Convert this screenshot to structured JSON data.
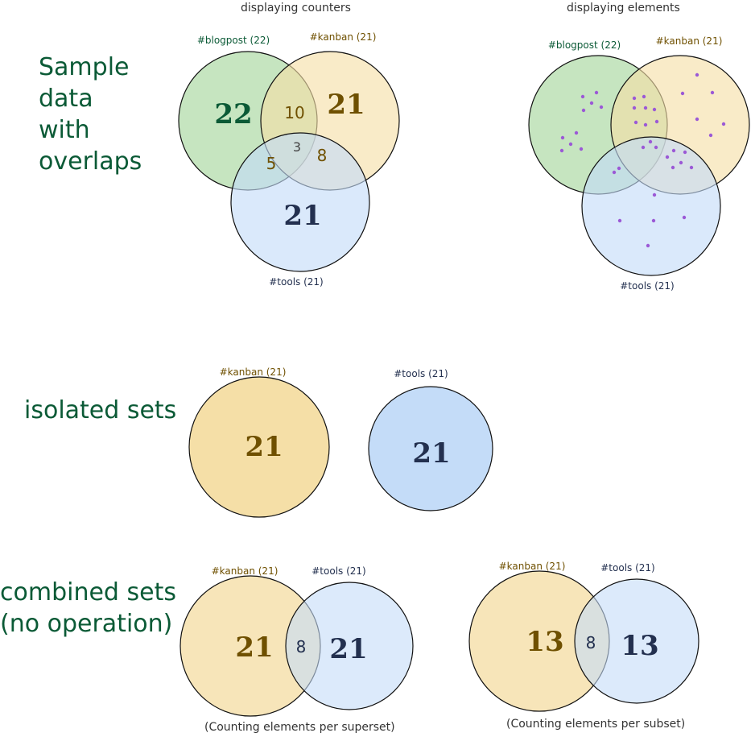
{
  "headers": {
    "counters": "displaying counters",
    "elements": "displaying elements"
  },
  "sections": {
    "overlaps": [
      "Sample",
      "data",
      "with",
      "overlaps"
    ],
    "isolated": "isolated sets",
    "combined": [
      "combined sets",
      "(no operation)"
    ]
  },
  "sets": {
    "blogpost": "#blogpost (22)",
    "kanban": "#kanban (21)",
    "tools": "#tools (21)"
  },
  "counts": {
    "blogpost_only": "22",
    "kanban_only": "21",
    "tools_only": "21",
    "blogpost_kanban": "10",
    "blogpost_tools": "5",
    "kanban_tools": "8",
    "all_three": "3",
    "isolated_kanban": "21",
    "isolated_tools": "21",
    "superset_kanban": "21",
    "superset_overlap": "8",
    "superset_tools": "21",
    "subset_kanban": "13",
    "subset_overlap": "8",
    "subset_tools": "13"
  },
  "captions": {
    "superset": "(Counting elements per superset)",
    "subset": "(Counting elements per subset)"
  },
  "colors": {
    "green": "#a3d59a",
    "yellow": "#f5dfa7",
    "blue": "#c4dcf8",
    "green_text": "#0b5a36",
    "yellow_text": "#6f5000",
    "blue_text": "#23304f",
    "dot": "#9b59d6"
  }
}
